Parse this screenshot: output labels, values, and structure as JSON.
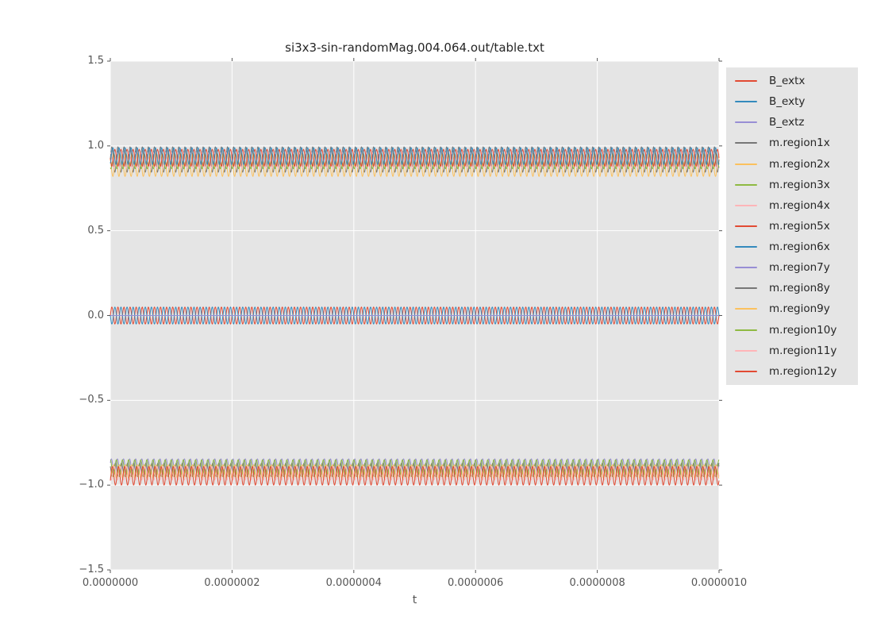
{
  "figure": {
    "plot_bg_color": "#e5e5e5",
    "grid_color": "#ffffff",
    "tick_color": "#555555",
    "legend_bg_color": "#e5e5e5"
  },
  "chart_data": {
    "type": "line",
    "title": "si3x3-sin-randomMag.004.064.out/table.txt",
    "xlabel": "t",
    "ylabel": "",
    "xlim": [
      0,
      1e-06
    ],
    "ylim": [
      -1.5,
      1.5
    ],
    "x_tick_labels": [
      "0.0000000",
      "0.0000002",
      "0.0000004",
      "0.0000006",
      "0.0000008",
      "0.0000010"
    ],
    "x_tick_values": [
      0,
      2e-07,
      4e-07,
      6e-07,
      8e-07,
      1e-06
    ],
    "y_tick_labels": [
      "1.5",
      "1.0",
      "0.5",
      "0.0",
      "−0.5",
      "−1.0",
      "−1.5"
    ],
    "y_tick_values": [
      1.5,
      1.0,
      0.5,
      0.0,
      -0.5,
      -1.0,
      -1.5
    ],
    "grid": true,
    "ticks_all_sides": true,
    "legend_position": "outside upper right",
    "waveform_note": "All series are dense sinusoids, ~100 cycles across the 0..1e-6 s window (~1e8 Hz). Three bands: m.region1x-6x oscillate near +0.9, B_ext components near 0 (B_extz flat at 0), m.region7y-12y near -0.93.",
    "cycles": 100,
    "series": [
      {
        "name": "B_extx",
        "color": "#E24A33",
        "mean": 0.0,
        "amplitude": 0.05,
        "phase": 0.0
      },
      {
        "name": "B_exty",
        "color": "#348ABD",
        "mean": 0.0,
        "amplitude": 0.05,
        "phase": 3.1416
      },
      {
        "name": "B_extz",
        "color": "#988ED5",
        "mean": 0.0,
        "amplitude": 0.0,
        "phase": 0.0
      },
      {
        "name": "m.region1x",
        "color": "#777777",
        "mean": 0.92,
        "amplitude": 0.075,
        "phase": 0.0
      },
      {
        "name": "m.region2x",
        "color": "#FBC15E",
        "mean": 0.875,
        "amplitude": 0.055,
        "phase": 2.1
      },
      {
        "name": "m.region3x",
        "color": "#8EBA42",
        "mean": 0.91,
        "amplitude": 0.045,
        "phase": 4.2
      },
      {
        "name": "m.region4x",
        "color": "#FFB5B8",
        "mean": 0.915,
        "amplitude": 0.045,
        "phase": 1.05
      },
      {
        "name": "m.region5x",
        "color": "#E24A33",
        "mean": 0.93,
        "amplitude": 0.05,
        "phase": 3.15
      },
      {
        "name": "m.region6x",
        "color": "#348ABD",
        "mean": 0.94,
        "amplitude": 0.05,
        "phase": 5.25
      },
      {
        "name": "m.region7y",
        "color": "#988ED5",
        "mean": -0.89,
        "amplitude": 0.045,
        "phase": 0.5
      },
      {
        "name": "m.region8y",
        "color": "#777777",
        "mean": -0.91,
        "amplitude": 0.04,
        "phase": 2.6
      },
      {
        "name": "m.region9y",
        "color": "#FBC15E",
        "mean": -0.92,
        "amplitude": 0.04,
        "phase": 4.7
      },
      {
        "name": "m.region10y",
        "color": "#8EBA42",
        "mean": -0.9,
        "amplitude": 0.05,
        "phase": 1.55
      },
      {
        "name": "m.region11y",
        "color": "#FFB5B8",
        "mean": -0.93,
        "amplitude": 0.04,
        "phase": 3.65
      },
      {
        "name": "m.region12y",
        "color": "#E24A33",
        "mean": -0.945,
        "amplitude": 0.055,
        "phase": 5.75
      }
    ]
  }
}
